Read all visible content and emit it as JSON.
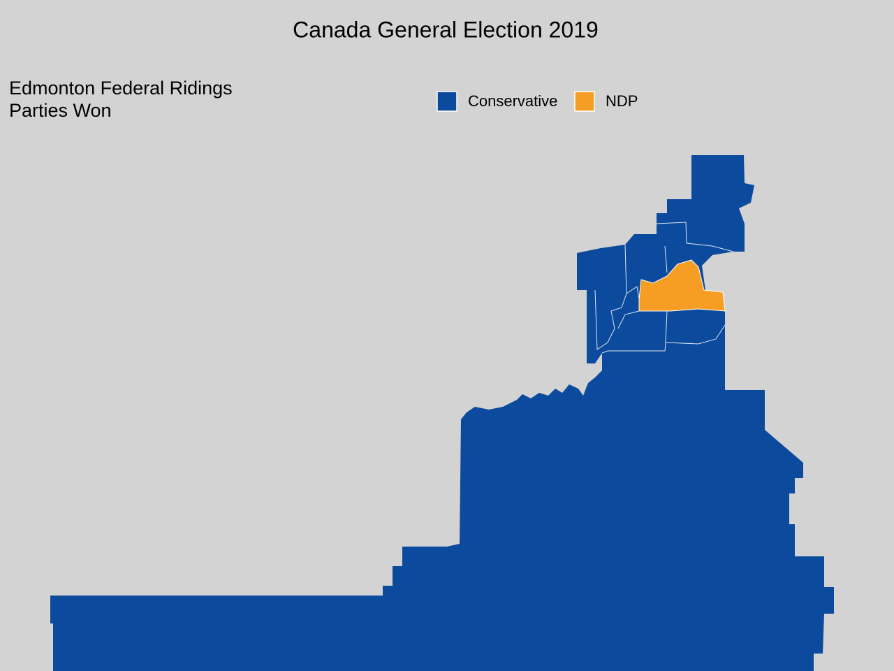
{
  "title": "Canada General Election 2019",
  "subtitle": [
    "Edmonton Federal Ridings",
    "Parties Won"
  ],
  "legend": [
    {
      "name": "Conservative",
      "color": "#0b4a9c"
    },
    {
      "name": "NDP",
      "color": "#f59e23"
    }
  ]
}
